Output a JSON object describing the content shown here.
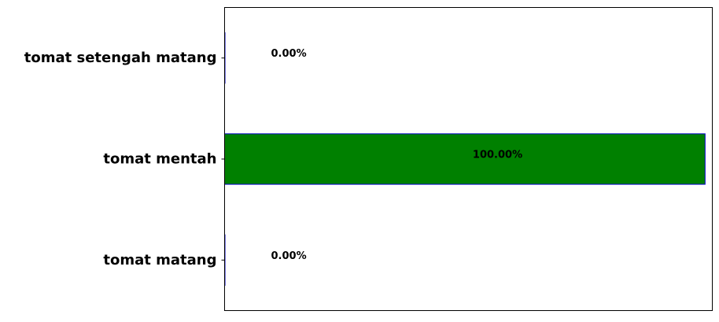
{
  "chart_data": {
    "type": "bar",
    "orientation": "horizontal",
    "categories": [
      "tomat matang",
      "tomat mentah",
      "tomat setengah matang"
    ],
    "values": [
      0,
      100,
      0
    ],
    "value_labels": [
      "0.00%",
      "100.00%",
      "0.00%"
    ],
    "title": "",
    "xlabel": "",
    "ylabel": "",
    "xlim": [
      0,
      101.5
    ],
    "x_ticks_visible": false,
    "grid": false,
    "colors": {
      "bar_fill": "#008000",
      "bar_edge": "#0000cc",
      "axes": "#000000"
    }
  }
}
